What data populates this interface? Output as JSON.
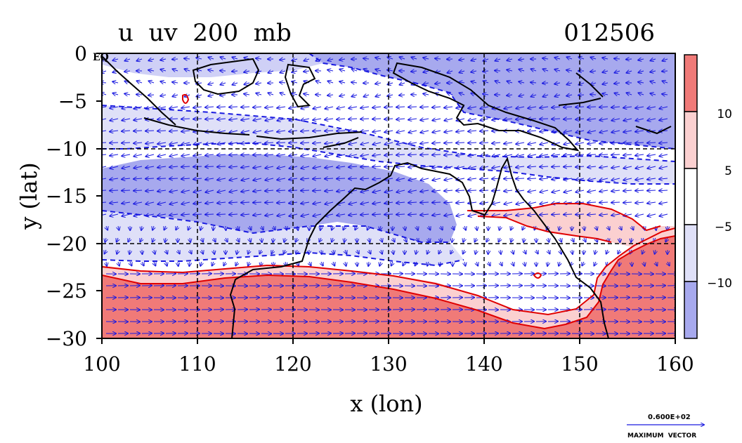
{
  "title": {
    "left": "u  uv  200  mb",
    "right": "012506"
  },
  "axes": {
    "xlabel": "x (lon)",
    "ylabel": "y (lat)",
    "x_ticks": [
      "100",
      "110",
      "120",
      "130",
      "140",
      "150",
      "160"
    ],
    "y_ticks": [
      "0",
      "−5",
      "−10",
      "−15",
      "−20",
      "−25",
      "−30"
    ],
    "x_range": [
      100,
      160
    ],
    "y_range": [
      -30,
      0
    ],
    "corner_mark": "EQ"
  },
  "colorbar": {
    "labels": [
      "10",
      "5",
      "−5",
      "−10"
    ],
    "colors": {
      "strong_pos": "#f07a78",
      "weak_pos": "#fbd0d0",
      "neutral": "#ffffff",
      "weak_neg": "#dfe0f8",
      "strong_neg": "#a7a9ee"
    }
  },
  "vector_key": {
    "value": "0.600E+02",
    "label": "MAXIMUM  VECTOR"
  },
  "colors": {
    "vector": "#1a1ae0",
    "coast": "#000000",
    "pos_contour": "#e00000",
    "neg_contour": "#1a1ae0"
  },
  "chart_data": {
    "type": "map",
    "variable": "u uv 200 mb",
    "date": "012506",
    "lon_range": [
      100,
      160
    ],
    "lat_range": [
      -30,
      0
    ],
    "grid_lon": [
      110,
      120,
      130,
      140,
      150
    ],
    "grid_lat": [
      -10,
      -20
    ],
    "shading_levels": [
      -10,
      -5,
      5,
      10
    ],
    "regions": [
      {
        "band": "u < -10",
        "area": "tropical band near equator (0 to -12) and band -12 to -20 over west"
      },
      {
        "band": "-10 < u < -5",
        "area": "bands between -5 and -12 and -18 to -22"
      },
      {
        "band": "-5 < u < 5",
        "area": "northern Australia / -18 to -25"
      },
      {
        "band": "5 < u < 10",
        "area": "thin band near -23 to -26"
      },
      {
        "band": "u > 10",
        "area": "southern band -24 to -30 (jet)"
      }
    ],
    "max_vector": 60
  }
}
